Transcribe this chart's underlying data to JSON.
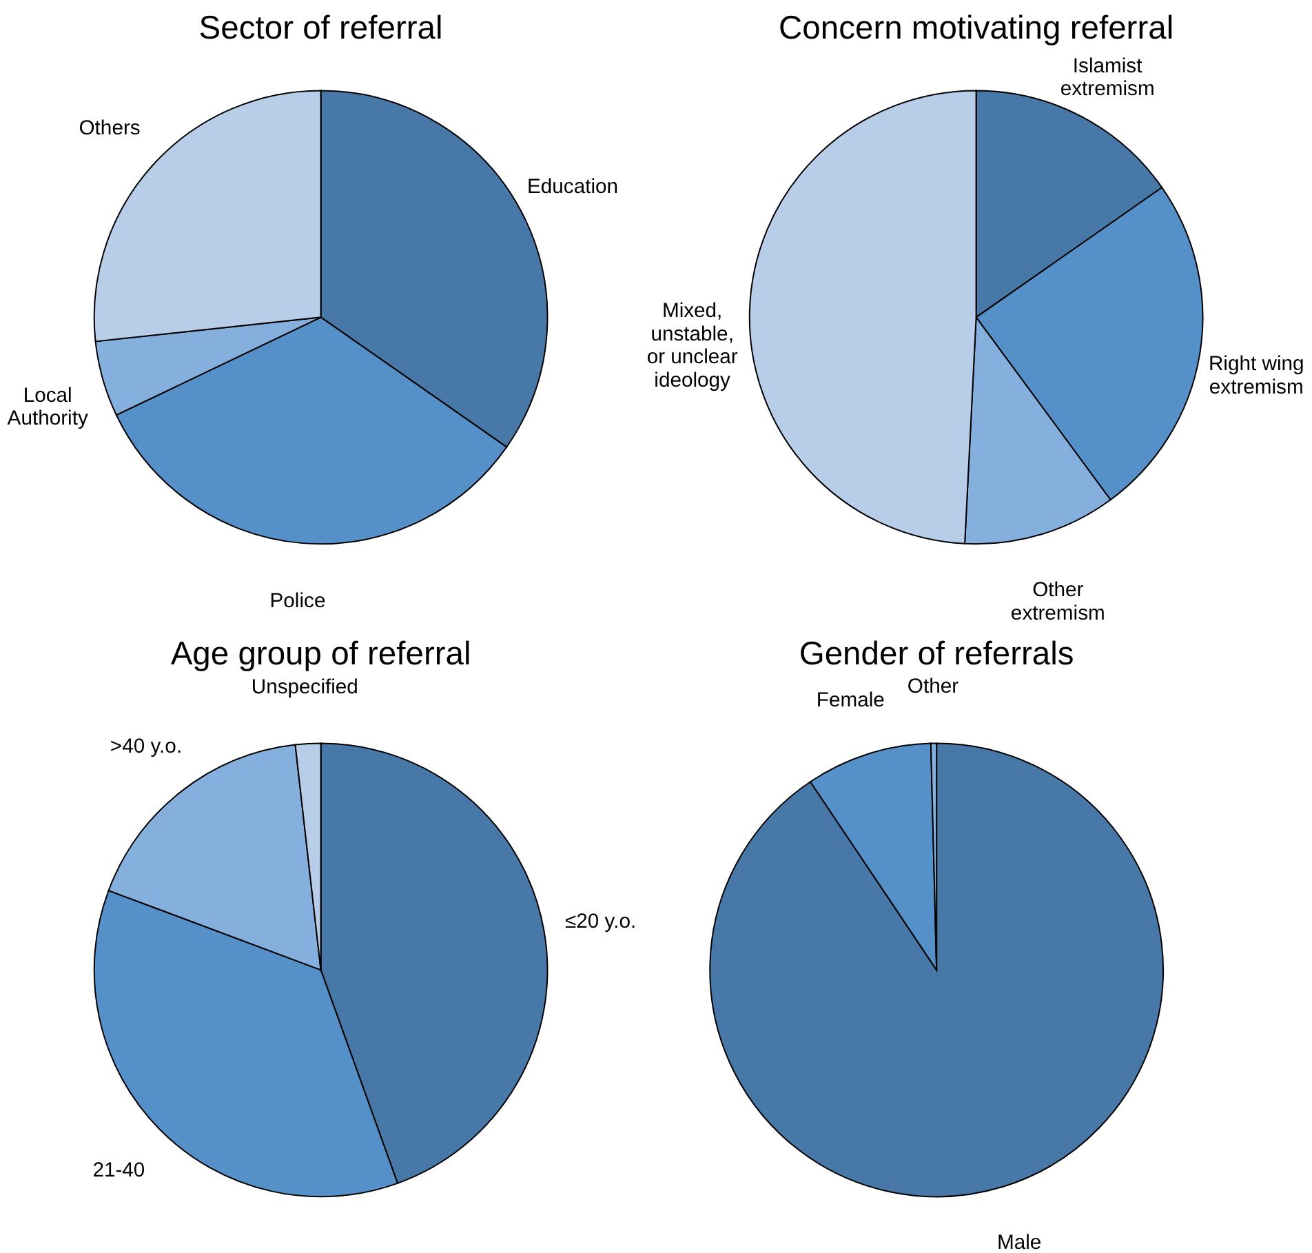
{
  "chart_data": [
    {
      "type": "pie",
      "title": "Sector of referral",
      "categories": [
        "Education",
        "Police",
        "Local\nAuthority",
        "Others"
      ],
      "values": [
        34.7,
        33.2,
        5.4,
        26.7
      ],
      "colors": [
        "#4878a8",
        "#5590c8",
        "#85b0de",
        "#b8cde8"
      ]
    },
    {
      "type": "pie",
      "title": "Concern motivating referral",
      "categories": [
        "Islamist\nextremism",
        "Right wing\nextremism",
        "Other\nextremism",
        "Mixed,\nunstable,\nor unclear\nideology"
      ],
      "values": [
        15.3,
        24.6,
        10.9,
        49.2
      ],
      "colors": [
        "#4878a8",
        "#5590c8",
        "#85b0de",
        "#b8cde8"
      ]
    },
    {
      "type": "pie",
      "title": "Age group of referral",
      "categories": [
        "≤20 y.o.",
        "21-40",
        ">40 y.o.",
        "Unspecified"
      ],
      "values": [
        44.5,
        36.2,
        17.5,
        1.8
      ],
      "colors": [
        "#4878a8",
        "#5590c8",
        "#85b0de",
        "#b8cde8"
      ]
    },
    {
      "type": "pie",
      "title": "Gender of referrals",
      "categories": [
        "Male",
        "Female",
        "Other"
      ],
      "values": [
        90.6,
        9.0,
        0.4
      ],
      "colors": [
        "#4878a8",
        "#5590c8",
        "#85b0de"
      ]
    }
  ]
}
